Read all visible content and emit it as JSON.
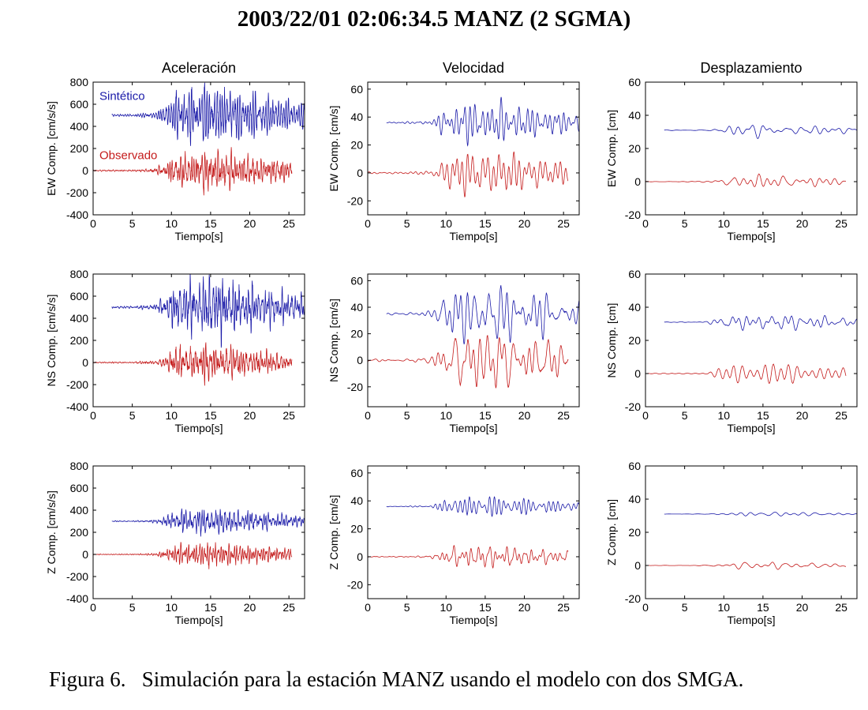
{
  "title": "2003/22/01   02:06:34.5 MANZ (2 SGMA)",
  "caption": "Figura 6.   Simulación para la estación MANZ usando el modelo con dos SMGA.",
  "colors": {
    "synthetic": "#1a1aa8",
    "observed": "#c41a1a",
    "axes": "#000000"
  },
  "legend": {
    "synthetic": "Sintético",
    "observed": "Observado"
  },
  "chart_data": [
    {
      "type": "line",
      "component": "EW",
      "quantity": "Aceleración",
      "title": "Aceleración",
      "xlabel": "Tiempo[s]",
      "ylabel": "EW Comp. [cm/s/s]",
      "xlim": [
        0,
        27
      ],
      "ylim": [
        -400,
        800
      ],
      "xticks": [
        0,
        5,
        10,
        15,
        20,
        25
      ],
      "yticks": [
        -400,
        -200,
        0,
        200,
        400,
        600,
        800
      ],
      "series": [
        {
          "name": "Sintético",
          "t_start": 2.4,
          "t_end": 27,
          "offset": 500,
          "amp": 250,
          "freq": 2.4,
          "seed": 11
        },
        {
          "name": "Observado",
          "t_start": 0,
          "t_end": 25.4,
          "offset": 0,
          "amp": 185,
          "freq": 2.4,
          "seed": 12
        }
      ]
    },
    {
      "type": "line",
      "component": "EW",
      "quantity": "Velocidad",
      "title": "Velocidad",
      "xlabel": "Tiempo[s]",
      "ylabel": "EW Comp. [cm/s]",
      "xlim": [
        0,
        27
      ],
      "ylim": [
        -30,
        65
      ],
      "xticks": [
        0,
        5,
        10,
        15,
        20,
        25
      ],
      "yticks": [
        -20,
        0,
        20,
        40,
        60
      ],
      "series": [
        {
          "name": "Sintético",
          "t_start": 2.4,
          "t_end": 27,
          "offset": 36,
          "amp": 16,
          "freq": 1.0,
          "seed": 21
        },
        {
          "name": "Observado",
          "t_start": 0,
          "t_end": 25.6,
          "offset": 0,
          "amp": 15,
          "freq": 1.0,
          "seed": 22
        }
      ]
    },
    {
      "type": "line",
      "component": "EW",
      "quantity": "Desplazamiento",
      "title": "Desplazamiento",
      "xlabel": "Tiempo[s]",
      "ylabel": "EW Comp. [cm]",
      "xlim": [
        0,
        27
      ],
      "ylim": [
        -20,
        60
      ],
      "xticks": [
        0,
        5,
        10,
        15,
        20,
        25
      ],
      "yticks": [
        -20,
        0,
        20,
        40,
        60
      ],
      "series": [
        {
          "name": "Sintético",
          "t_start": 2.4,
          "t_end": 27,
          "offset": 31,
          "amp": 4,
          "freq": 0.6,
          "seed": 31
        },
        {
          "name": "Observado",
          "t_start": 0,
          "t_end": 25.6,
          "offset": 0,
          "amp": 4,
          "freq": 0.6,
          "seed": 32
        }
      ]
    },
    {
      "type": "line",
      "component": "NS",
      "quantity": "Aceleración",
      "title": "",
      "xlabel": "Tiempo[s]",
      "ylabel": "NS Comp. [cm/s/s]",
      "xlim": [
        0,
        27
      ],
      "ylim": [
        -400,
        800
      ],
      "xticks": [
        0,
        5,
        10,
        15,
        20,
        25
      ],
      "yticks": [
        -400,
        -200,
        0,
        200,
        400,
        600,
        800
      ],
      "series": [
        {
          "name": "Sintético",
          "t_start": 2.4,
          "t_end": 27,
          "offset": 500,
          "amp": 250,
          "freq": 2.4,
          "seed": 41
        },
        {
          "name": "Observado",
          "t_start": 0,
          "t_end": 25.4,
          "offset": 0,
          "amp": 170,
          "freq": 2.4,
          "seed": 42
        }
      ]
    },
    {
      "type": "line",
      "component": "NS",
      "quantity": "Velocidad",
      "title": "",
      "xlabel": "Tiempo[s]",
      "ylabel": "NS Comp. [cm/s]",
      "xlim": [
        0,
        27
      ],
      "ylim": [
        -35,
        65
      ],
      "xticks": [
        0,
        5,
        10,
        15,
        20,
        25
      ],
      "yticks": [
        -20,
        0,
        20,
        40,
        60
      ],
      "series": [
        {
          "name": "Sintético",
          "t_start": 2.4,
          "t_end": 27,
          "offset": 35,
          "amp": 25,
          "freq": 0.9,
          "seed": 51
        },
        {
          "name": "Observado",
          "t_start": 0,
          "t_end": 25.6,
          "offset": 0,
          "amp": 26,
          "freq": 0.9,
          "seed": 52
        }
      ]
    },
    {
      "type": "line",
      "component": "NS",
      "quantity": "Desplazamiento",
      "title": "",
      "xlabel": "Tiempo[s]",
      "ylabel": "NS Comp. [cm]",
      "xlim": [
        0,
        27
      ],
      "ylim": [
        -20,
        60
      ],
      "xticks": [
        0,
        5,
        10,
        15,
        20,
        25
      ],
      "yticks": [
        -20,
        0,
        20,
        40,
        60
      ],
      "series": [
        {
          "name": "Sintético",
          "t_start": 2.4,
          "t_end": 27,
          "offset": 31,
          "amp": 6,
          "freq": 0.7,
          "seed": 61
        },
        {
          "name": "Observado",
          "t_start": 0,
          "t_end": 25.6,
          "offset": 0,
          "amp": 6,
          "freq": 0.7,
          "seed": 62
        }
      ]
    },
    {
      "type": "line",
      "component": "Z",
      "quantity": "Aceleración",
      "title": "",
      "xlabel": "Tiempo[s]",
      "ylabel": "Z Comp. [cm/s/s]",
      "xlim": [
        0,
        27
      ],
      "ylim": [
        -400,
        800
      ],
      "xticks": [
        0,
        5,
        10,
        15,
        20,
        25
      ],
      "yticks": [
        -400,
        -200,
        0,
        200,
        400,
        600,
        800
      ],
      "series": [
        {
          "name": "Sintético",
          "t_start": 2.4,
          "t_end": 27,
          "offset": 300,
          "amp": 110,
          "freq": 2.4,
          "seed": 71
        },
        {
          "name": "Observado",
          "t_start": 0,
          "t_end": 25.4,
          "offset": 0,
          "amp": 95,
          "freq": 2.4,
          "seed": 72
        }
      ]
    },
    {
      "type": "line",
      "component": "Z",
      "quantity": "Velocidad",
      "title": "",
      "xlabel": "Tiempo[s]",
      "ylabel": "Z Comp. [cm/s]",
      "xlim": [
        0,
        27
      ],
      "ylim": [
        -30,
        65
      ],
      "xticks": [
        0,
        5,
        10,
        15,
        20,
        25
      ],
      "yticks": [
        -20,
        0,
        20,
        40,
        60
      ],
      "series": [
        {
          "name": "Sintético",
          "t_start": 2.4,
          "t_end": 27,
          "offset": 36,
          "amp": 7,
          "freq": 1.1,
          "seed": 81
        },
        {
          "name": "Observado",
          "t_start": 0,
          "t_end": 25.6,
          "offset": 0,
          "amp": 8,
          "freq": 1.1,
          "seed": 82
        }
      ]
    },
    {
      "type": "line",
      "component": "Z",
      "quantity": "Desplazamiento",
      "title": "",
      "xlabel": "Tiempo[s]",
      "ylabel": "Z Comp. [cm]",
      "xlim": [
        0,
        27
      ],
      "ylim": [
        -20,
        60
      ],
      "xticks": [
        0,
        5,
        10,
        15,
        20,
        25
      ],
      "yticks": [
        -20,
        0,
        20,
        40,
        60
      ],
      "series": [
        {
          "name": "Sintético",
          "t_start": 2.4,
          "t_end": 27,
          "offset": 31,
          "amp": 1.5,
          "freq": 0.6,
          "seed": 91
        },
        {
          "name": "Observado",
          "t_start": 0,
          "t_end": 25.6,
          "offset": 0,
          "amp": 2.2,
          "freq": 0.6,
          "seed": 92
        }
      ]
    }
  ]
}
